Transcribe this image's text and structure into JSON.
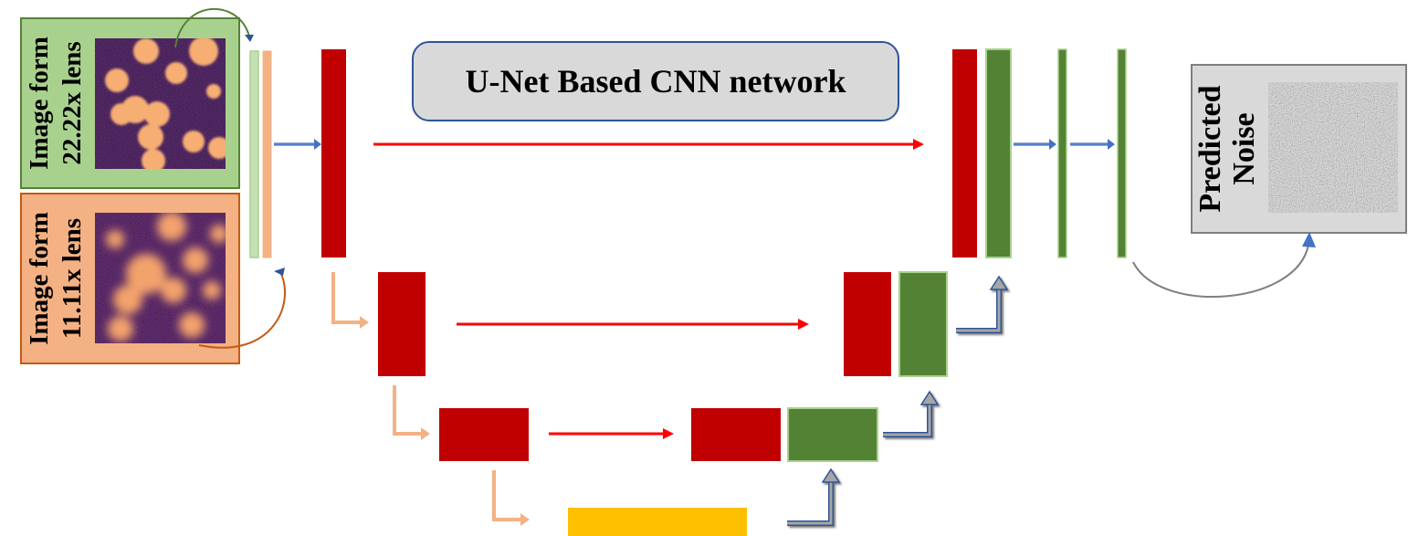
{
  "title": "U-Net Based CNN network",
  "inputs": [
    {
      "label_line1": "Image form",
      "label_line2": "22.22x lens"
    },
    {
      "label_line1": "Image form",
      "label_line2": "11.11x lens"
    }
  ],
  "output": {
    "label_line1": "Predicted",
    "label_line2": "Noise"
  },
  "colors": {
    "encoder_block": "#c00000",
    "decoder_block": "#548235",
    "bottleneck_block": "#ffc000",
    "skip_arrow": "#ff0000",
    "pool_arrow": "#f4b183",
    "up_arrow": "#808080",
    "input_green": "#a9d18e",
    "input_orange": "#f4b183",
    "title_box": "#d9d9d9",
    "output_box": "#d9d9d9"
  }
}
